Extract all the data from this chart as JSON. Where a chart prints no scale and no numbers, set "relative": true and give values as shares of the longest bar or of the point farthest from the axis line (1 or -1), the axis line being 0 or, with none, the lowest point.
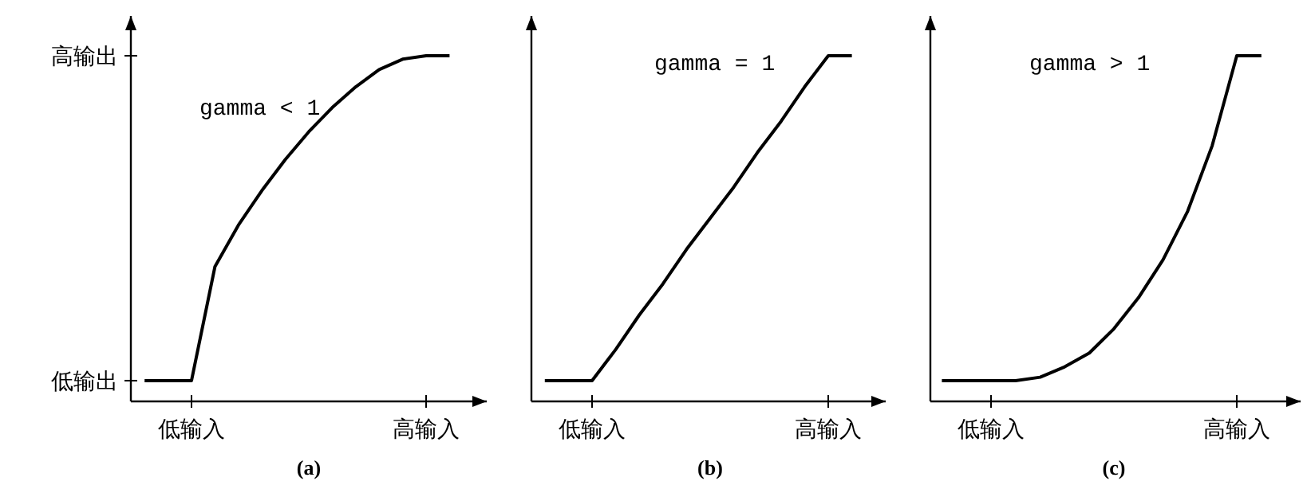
{
  "chart_data": [
    {
      "type": "line",
      "relative": true,
      "annotations": [
        "gamma < 1",
        "(a)",
        "高输出",
        "低输出"
      ],
      "categories": [
        null,
        null,
        "低输入",
        null,
        null,
        null,
        null,
        null,
        null,
        null,
        null,
        null,
        "高输入",
        null
      ],
      "grid": false,
      "marker": "none",
      "line_style": "solid",
      "series": [
        {
          "color": "#000000",
          "values": [
            0.06,
            0.06,
            0.06,
            0.39,
            0.51,
            0.61,
            0.7,
            0.78,
            0.85,
            0.91,
            0.96,
            0.99,
            1,
            1
          ]
        }
      ]
    },
    {
      "type": "line",
      "relative": true,
      "annotations": [
        "gamma = 1",
        "(b)"
      ],
      "categories": [
        null,
        null,
        "低输入",
        null,
        null,
        null,
        null,
        null,
        null,
        null,
        null,
        null,
        "高输入",
        null
      ],
      "grid": false,
      "marker": "none",
      "line_style": "solid",
      "series": [
        {
          "color": "#000000",
          "values": [
            0.06,
            0.06,
            0.06,
            0.15,
            0.25,
            0.34,
            0.44,
            0.53,
            0.62,
            0.72,
            0.81,
            0.91,
            1,
            1
          ]
        }
      ]
    },
    {
      "type": "line",
      "relative": true,
      "annotations": [
        "gamma > 1",
        "(c)"
      ],
      "categories": [
        null,
        null,
        "低输入",
        null,
        null,
        null,
        null,
        null,
        null,
        null,
        null,
        null,
        "高输入",
        null
      ],
      "grid": false,
      "marker": "none",
      "line_style": "solid",
      "series": [
        {
          "color": "#000000",
          "values": [
            0.06,
            0.06,
            0.06,
            0.06,
            0.07,
            0.1,
            0.14,
            0.21,
            0.3,
            0.41,
            0.55,
            0.74,
            1,
            1
          ]
        }
      ]
    }
  ]
}
